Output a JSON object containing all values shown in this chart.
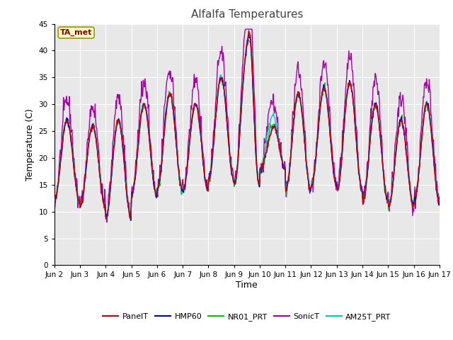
{
  "title": "Alfalfa Temperatures",
  "xlabel": "Time",
  "ylabel": "Temperature (C)",
  "annotation": "TA_met",
  "ylim": [
    0,
    45
  ],
  "yticks": [
    0,
    5,
    10,
    15,
    20,
    25,
    30,
    35,
    40,
    45
  ],
  "x_labels": [
    "Jun 2",
    "Jun 3",
    "Jun 4",
    "Jun 5",
    "Jun 6",
    "Jun 7",
    "Jun 8",
    "Jun 9",
    "Jun 10",
    "Jun 11",
    "Jun 12",
    "Jun 13",
    "Jun 14",
    "Jun 15",
    "Jun 16",
    "Jun 17"
  ],
  "series": {
    "PanelT": {
      "color": "#cc0000",
      "lw": 1.0
    },
    "HMP60": {
      "color": "#0000cc",
      "lw": 1.0
    },
    "NR01_PRT": {
      "color": "#00cc00",
      "lw": 1.0
    },
    "SonicT": {
      "color": "#aa00aa",
      "lw": 1.0
    },
    "AM25T_PRT": {
      "color": "#00cccc",
      "lw": 1.0
    }
  },
  "fig_bg_color": "#ffffff",
  "plot_bg_color": "#e8e8e8",
  "grid_color": "#ffffff",
  "n_days": 15,
  "pts_per_day": 48
}
